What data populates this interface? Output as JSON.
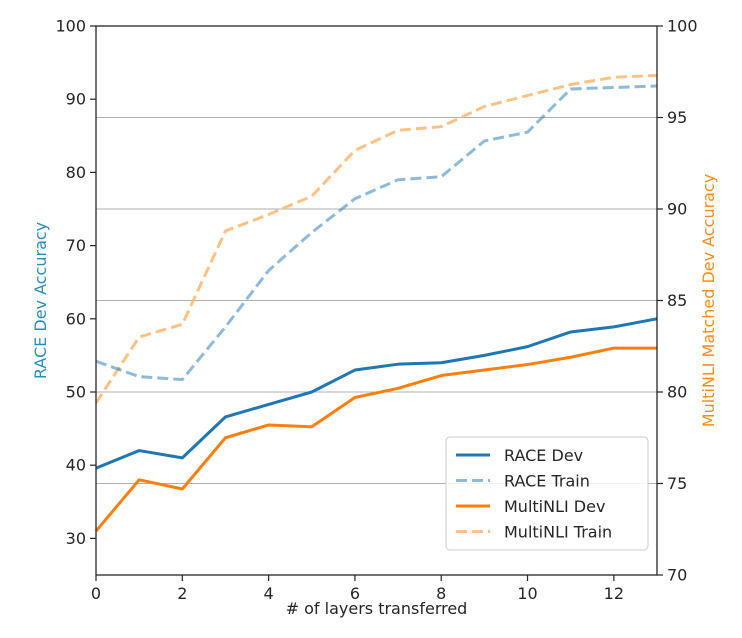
{
  "chart_data": {
    "type": "line",
    "xlabel": "# of layers transferred",
    "ylabel_left": "RACE Dev Accuracy",
    "ylabel_right": "MultiNLI Matched Dev Accuracy",
    "xlim": [
      0,
      13
    ],
    "ylim_left": [
      25,
      100
    ],
    "ylim_right": [
      70,
      100
    ],
    "x_ticks": [
      0,
      2,
      4,
      6,
      8,
      10,
      12
    ],
    "y_ticks_left": [
      30,
      40,
      50,
      60,
      70,
      80,
      90,
      100
    ],
    "y_ticks_right": [
      70,
      75,
      80,
      85,
      90,
      95,
      100
    ],
    "grid": "horizontal lines at right-axis ticks",
    "legend_position": "lower-right",
    "x": [
      0,
      1,
      2,
      3,
      4,
      5,
      6,
      7,
      8,
      9,
      10,
      11,
      12,
      13
    ],
    "series": [
      {
        "name": "RACE Dev",
        "axis": "left",
        "style": "solid",
        "color": "#1f77b4",
        "values": [
          39.6,
          42.0,
          41.0,
          46.6,
          48.3,
          50.0,
          53.0,
          53.8,
          54.0,
          55.0,
          56.2,
          58.2,
          58.9,
          60.0
        ]
      },
      {
        "name": "RACE Train",
        "axis": "left",
        "style": "dashed",
        "color": "#1f77b4",
        "values": [
          54.2,
          52.1,
          51.7,
          58.9,
          66.6,
          71.8,
          76.4,
          79.0,
          79.4,
          84.3,
          85.5,
          91.4,
          91.6,
          91.8
        ]
      },
      {
        "name": "MultiNLI Dev",
        "axis": "right",
        "style": "solid",
        "color": "#ff7f0e",
        "values": [
          72.4,
          75.2,
          74.7,
          77.5,
          78.2,
          78.1,
          79.7,
          80.2,
          80.9,
          81.2,
          81.5,
          81.9,
          82.4,
          82.4
        ]
      },
      {
        "name": "MultiNLI Train",
        "axis": "right",
        "style": "dashed",
        "color": "#ffbb78",
        "values": [
          79.4,
          83.0,
          83.7,
          88.8,
          89.7,
          90.7,
          93.2,
          94.3,
          94.5,
          95.6,
          96.2,
          96.8,
          97.2,
          97.3
        ]
      }
    ],
    "colors": {
      "left_axis_title": "#2b8cbe",
      "right_axis_title": "#ff8c1a",
      "grid": "#b0b0b0",
      "axes": "#262626"
    }
  }
}
